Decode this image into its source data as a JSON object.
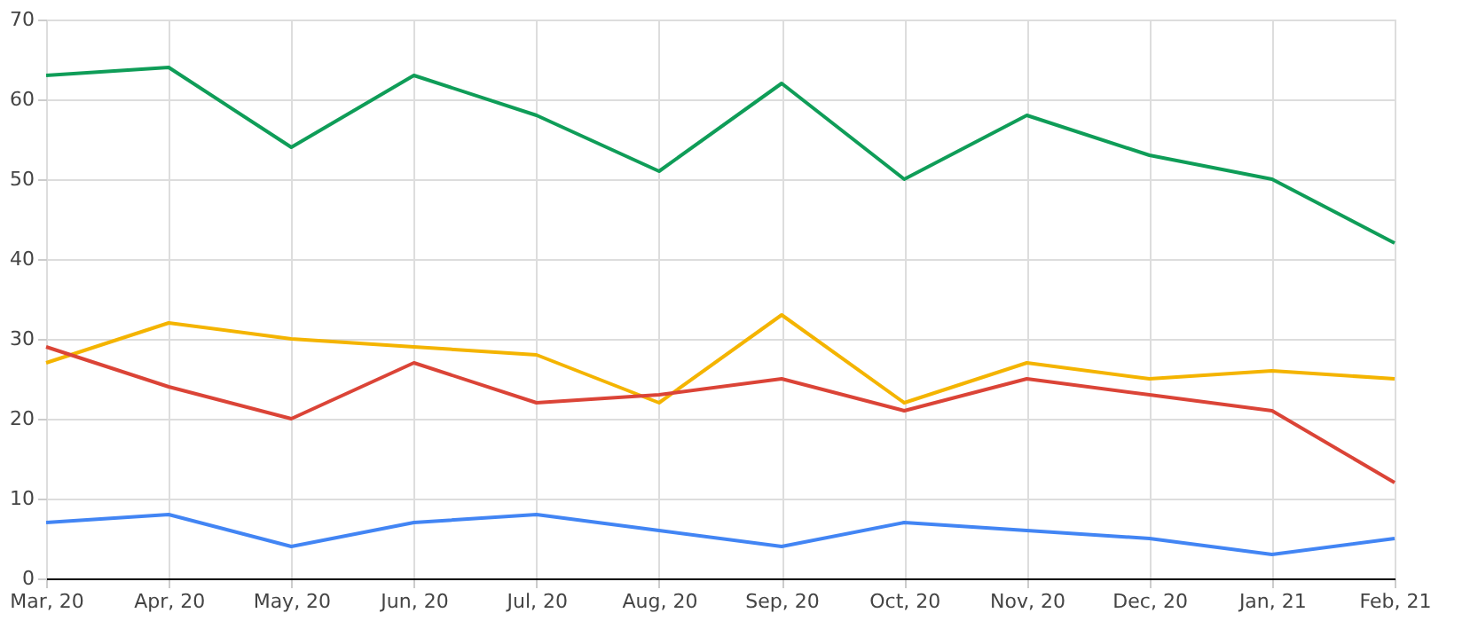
{
  "chart_data": {
    "type": "line",
    "categories": [
      "Mar, 20",
      "Apr, 20",
      "May, 20",
      "Jun, 20",
      "Jul, 20",
      "Aug, 20",
      "Sep, 20",
      "Oct, 20",
      "Nov, 20",
      "Dec, 20",
      "Jan, 21",
      "Feb, 21"
    ],
    "series": [
      {
        "color": "#0f9d58",
        "values": [
          63,
          64,
          54,
          63,
          58,
          51,
          62,
          50,
          58,
          53,
          50,
          42
        ]
      },
      {
        "color": "#f4b400",
        "values": [
          27,
          32,
          30,
          29,
          28,
          22,
          33,
          22,
          27,
          25,
          26,
          25
        ]
      },
      {
        "color": "#db4437",
        "values": [
          29,
          24,
          20,
          27,
          22,
          23,
          25,
          21,
          25,
          23,
          21,
          12
        ]
      },
      {
        "color": "#4285f4",
        "values": [
          7,
          8,
          4,
          7,
          8,
          6,
          4,
          7,
          6,
          5,
          3,
          5
        ]
      }
    ],
    "ylim": [
      0,
      70
    ],
    "yticks": [
      0,
      10,
      20,
      30,
      40,
      50,
      60,
      70
    ],
    "grid": true,
    "marker": "none",
    "line_style": "solid"
  }
}
